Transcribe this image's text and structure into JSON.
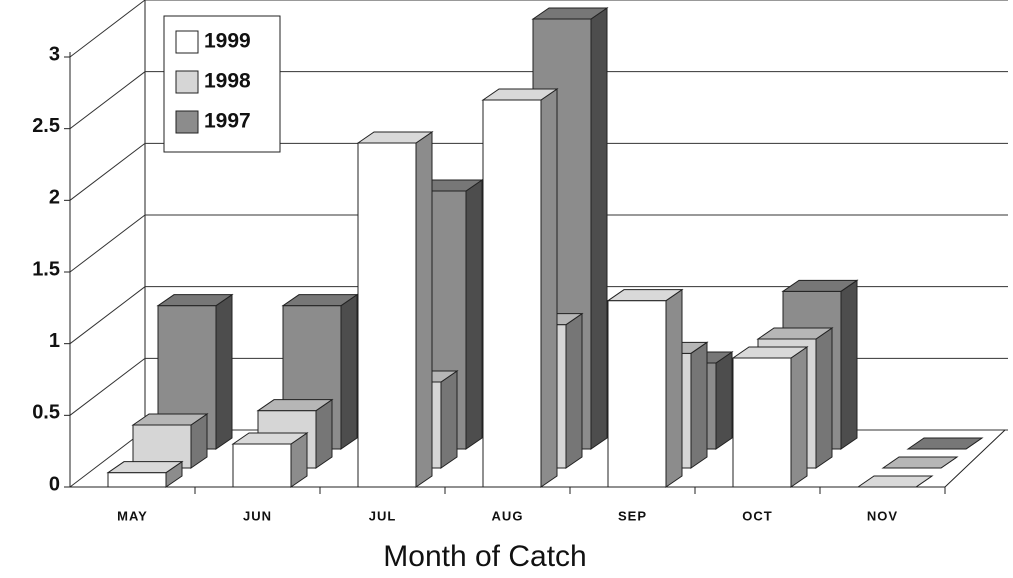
{
  "chart_data": {
    "type": "bar3d",
    "x_label": "Month of Catch",
    "categories": [
      "MAY",
      "JUN",
      "JUL",
      "AUG",
      "SEP",
      "OCT",
      "NOV"
    ],
    "series": [
      {
        "name": "1999",
        "color": "#ffffff",
        "values": [
          0.1,
          0.3,
          2.4,
          2.7,
          1.3,
          0.9,
          0
        ]
      },
      {
        "name": "1998",
        "color": "#d6d6d6",
        "values": [
          0.3,
          0.4,
          0.6,
          1.0,
          0.8,
          0.9,
          0
        ]
      },
      {
        "name": "1997",
        "color": "#8c8c8c",
        "values": [
          1.0,
          1.0,
          1.8,
          3.0,
          0.6,
          1.1,
          0
        ]
      }
    ],
    "ylim": [
      0,
      3
    ],
    "yticks": [
      0,
      0.5,
      1,
      1.5,
      2,
      2.5,
      3
    ],
    "grid": true,
    "legend": "top-left"
  }
}
